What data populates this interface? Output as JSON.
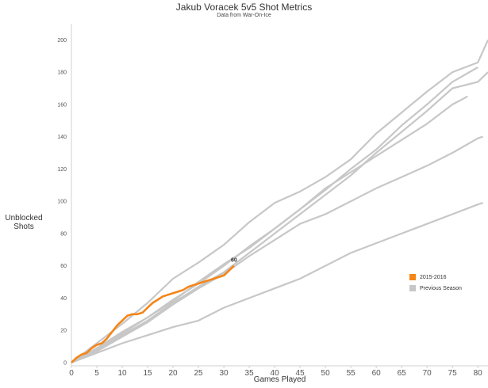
{
  "chart_data": {
    "type": "line",
    "title": "Jakub Voracek 5v5 Shot Metrics",
    "subtitle": "Data from War-On-Ice",
    "xlabel": "Games Played",
    "ylabel_lines": [
      "Unblocked",
      "Shots"
    ],
    "xlim": [
      0,
      82
    ],
    "ylim": [
      -2,
      210
    ],
    "x_ticks": [
      0,
      5,
      10,
      15,
      20,
      25,
      30,
      35,
      40,
      45,
      50,
      55,
      60,
      65,
      70,
      75,
      80
    ],
    "y_ticks": [
      0,
      20,
      40,
      60,
      80,
      100,
      120,
      140,
      160,
      180,
      200
    ],
    "grid": false,
    "legend": {
      "placement": "right",
      "items": [
        {
          "label": "2015-2016",
          "color": "#f58518"
        },
        {
          "label": "Previous Season",
          "color": "#c7c7c7"
        }
      ]
    },
    "highlight": {
      "name": "2015-2016",
      "color": "#f58518",
      "end_label": "60",
      "points": [
        [
          0,
          0
        ],
        [
          1,
          3
        ],
        [
          2,
          5
        ],
        [
          3,
          6
        ],
        [
          4,
          9
        ],
        [
          5,
          11
        ],
        [
          6,
          12
        ],
        [
          7,
          15
        ],
        [
          8,
          19
        ],
        [
          9,
          23
        ],
        [
          10,
          26
        ],
        [
          11,
          29
        ],
        [
          12,
          30
        ],
        [
          13,
          30
        ],
        [
          14,
          31
        ],
        [
          15,
          34
        ],
        [
          16,
          37
        ],
        [
          17,
          39
        ],
        [
          18,
          41
        ],
        [
          19,
          42
        ],
        [
          20,
          43
        ],
        [
          21,
          44
        ],
        [
          22,
          45
        ],
        [
          23,
          47
        ],
        [
          24,
          48
        ],
        [
          25,
          49
        ],
        [
          26,
          50
        ],
        [
          27,
          51
        ],
        [
          28,
          52
        ],
        [
          29,
          53
        ],
        [
          30,
          54
        ],
        [
          31,
          57
        ],
        [
          32,
          60
        ]
      ]
    },
    "previous_seasons": [
      {
        "color": "#c7c7c7",
        "points": [
          [
            0,
            0
          ],
          [
            5,
            12
          ],
          [
            10,
            24
          ],
          [
            15,
            37
          ],
          [
            20,
            52
          ],
          [
            25,
            62
          ],
          [
            30,
            73
          ],
          [
            35,
            87
          ],
          [
            40,
            99
          ],
          [
            45,
            106
          ],
          [
            50,
            115
          ],
          [
            55,
            126
          ],
          [
            60,
            142
          ],
          [
            65,
            155
          ],
          [
            70,
            168
          ],
          [
            75,
            180
          ],
          [
            80,
            186
          ],
          [
            82,
            200
          ]
        ]
      },
      {
        "color": "#c7c7c7",
        "points": [
          [
            0,
            0
          ],
          [
            5,
            8
          ],
          [
            10,
            18
          ],
          [
            15,
            28
          ],
          [
            20,
            39
          ],
          [
            25,
            49
          ],
          [
            30,
            60
          ],
          [
            35,
            72
          ],
          [
            40,
            83
          ],
          [
            45,
            95
          ],
          [
            50,
            107
          ],
          [
            55,
            120
          ],
          [
            60,
            132
          ],
          [
            65,
            147
          ],
          [
            70,
            160
          ],
          [
            75,
            174
          ],
          [
            80,
            183
          ]
        ]
      },
      {
        "color": "#c7c7c7",
        "points": [
          [
            0,
            0
          ],
          [
            5,
            8
          ],
          [
            10,
            17
          ],
          [
            15,
            26
          ],
          [
            20,
            37
          ],
          [
            25,
            47
          ],
          [
            30,
            56
          ],
          [
            35,
            68
          ],
          [
            40,
            80
          ],
          [
            45,
            92
          ],
          [
            50,
            104
          ],
          [
            55,
            116
          ],
          [
            60,
            130
          ],
          [
            65,
            143
          ],
          [
            70,
            156
          ],
          [
            75,
            170
          ],
          [
            80,
            174
          ],
          [
            82,
            180
          ]
        ]
      },
      {
        "color": "#c7c7c7",
        "points": [
          [
            0,
            0
          ],
          [
            5,
            9
          ],
          [
            10,
            19
          ],
          [
            15,
            28
          ],
          [
            20,
            38
          ],
          [
            25,
            50
          ],
          [
            30,
            61
          ],
          [
            35,
            71
          ],
          [
            40,
            83
          ],
          [
            45,
            95
          ],
          [
            50,
            108
          ],
          [
            55,
            118
          ],
          [
            60,
            128
          ],
          [
            65,
            138
          ],
          [
            70,
            148
          ],
          [
            75,
            160
          ],
          [
            78,
            165
          ]
        ]
      },
      {
        "color": "#c7c7c7",
        "points": [
          [
            0,
            0
          ],
          [
            5,
            7
          ],
          [
            10,
            16
          ],
          [
            15,
            25
          ],
          [
            20,
            36
          ],
          [
            25,
            46
          ],
          [
            30,
            55
          ],
          [
            35,
            66
          ],
          [
            40,
            76
          ],
          [
            45,
            86
          ],
          [
            50,
            92
          ],
          [
            55,
            100
          ],
          [
            60,
            108
          ],
          [
            65,
            115
          ],
          [
            70,
            122
          ],
          [
            75,
            130
          ],
          [
            80,
            139
          ],
          [
            81,
            140
          ]
        ]
      },
      {
        "color": "#c7c7c7",
        "points": [
          [
            0,
            0
          ],
          [
            5,
            6
          ],
          [
            10,
            12
          ],
          [
            15,
            17
          ],
          [
            20,
            22
          ],
          [
            25,
            26
          ],
          [
            30,
            34
          ],
          [
            35,
            40
          ],
          [
            40,
            46
          ],
          [
            45,
            52
          ],
          [
            50,
            60
          ],
          [
            55,
            68
          ],
          [
            60,
            74
          ],
          [
            65,
            80
          ],
          [
            70,
            86
          ],
          [
            75,
            92
          ],
          [
            80,
            98
          ],
          [
            81,
            99
          ]
        ]
      }
    ]
  }
}
